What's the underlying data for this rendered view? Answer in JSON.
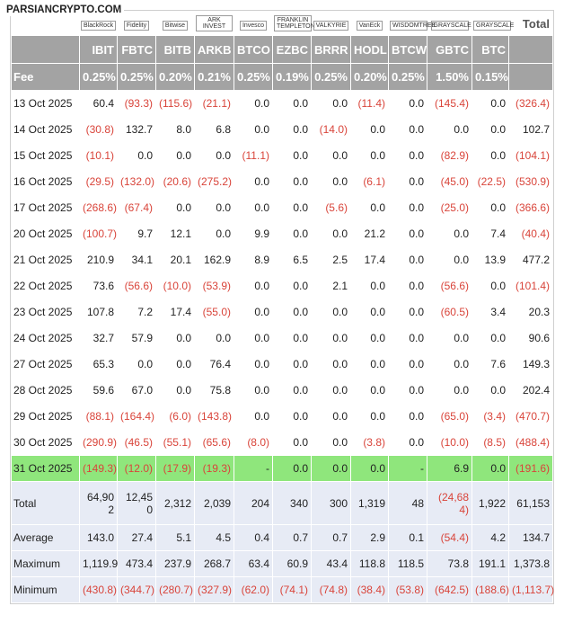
{
  "watermark": "PARSIANCRYPTO.COM",
  "table": {
    "logos": [
      "BlackRock",
      "Fidelity",
      "Bitwise",
      "ARK INVEST",
      "Invesco",
      "FRANKLIN TEMPLETON",
      "VALKYRIE",
      "VanEck",
      "WISDOMTREE",
      "GRAYSCALE",
      "GRAYSCALE",
      "Total"
    ],
    "tickers": [
      "IBIT",
      "FBTC",
      "BITB",
      "ARKB",
      "BTCO",
      "EZBC",
      "BRRR",
      "HODL",
      "BTCW",
      "GBTC",
      "BTC"
    ],
    "fee_label": "Fee",
    "fees": [
      "0.25%",
      "0.25%",
      "0.20%",
      "0.21%",
      "0.25%",
      "0.19%",
      "0.25%",
      "0.20%",
      "0.25%",
      "1.50%",
      "0.15%"
    ],
    "rows": [
      {
        "date": "13 Oct 2025",
        "values": [
          "60.4",
          "(93.3)",
          "(115.6)",
          "(21.1)",
          "0.0",
          "0.0",
          "0.0",
          "(11.4)",
          "0.0",
          "(145.4)",
          "0.0",
          "(326.4)"
        ]
      },
      {
        "date": "14 Oct 2025",
        "values": [
          "(30.8)",
          "132.7",
          "8.0",
          "6.8",
          "0.0",
          "0.0",
          "(14.0)",
          "0.0",
          "0.0",
          "0.0",
          "0.0",
          "102.7"
        ]
      },
      {
        "date": "15 Oct 2025",
        "values": [
          "(10.1)",
          "0.0",
          "0.0",
          "0.0",
          "(11.1)",
          "0.0",
          "0.0",
          "0.0",
          "0.0",
          "(82.9)",
          "0.0",
          "(104.1)"
        ]
      },
      {
        "date": "16 Oct 2025",
        "values": [
          "(29.5)",
          "(132.0)",
          "(20.6)",
          "(275.2)",
          "0.0",
          "0.0",
          "0.0",
          "(6.1)",
          "0.0",
          "(45.0)",
          "(22.5)",
          "(530.9)"
        ]
      },
      {
        "date": "17 Oct 2025",
        "values": [
          "(268.6)",
          "(67.4)",
          "0.0",
          "0.0",
          "0.0",
          "0.0",
          "(5.6)",
          "0.0",
          "0.0",
          "(25.0)",
          "0.0",
          "(366.6)"
        ]
      },
      {
        "date": "20 Oct 2025",
        "values": [
          "(100.7)",
          "9.7",
          "12.1",
          "0.0",
          "9.9",
          "0.0",
          "0.0",
          "21.2",
          "0.0",
          "0.0",
          "7.4",
          "(40.4)"
        ]
      },
      {
        "date": "21 Oct 2025",
        "values": [
          "210.9",
          "34.1",
          "20.1",
          "162.9",
          "8.9",
          "6.5",
          "2.5",
          "17.4",
          "0.0",
          "0.0",
          "13.9",
          "477.2"
        ]
      },
      {
        "date": "22 Oct 2025",
        "values": [
          "73.6",
          "(56.6)",
          "(10.0)",
          "(53.9)",
          "0.0",
          "0.0",
          "2.1",
          "0.0",
          "0.0",
          "(56.6)",
          "0.0",
          "(101.4)"
        ]
      },
      {
        "date": "23 Oct 2025",
        "values": [
          "107.8",
          "7.2",
          "17.4",
          "(55.0)",
          "0.0",
          "0.0",
          "0.0",
          "0.0",
          "0.0",
          "(60.5)",
          "3.4",
          "20.3"
        ]
      },
      {
        "date": "24 Oct 2025",
        "values": [
          "32.7",
          "57.9",
          "0.0",
          "0.0",
          "0.0",
          "0.0",
          "0.0",
          "0.0",
          "0.0",
          "0.0",
          "0.0",
          "90.6"
        ]
      },
      {
        "date": "27 Oct 2025",
        "values": [
          "65.3",
          "0.0",
          "0.0",
          "76.4",
          "0.0",
          "0.0",
          "0.0",
          "0.0",
          "0.0",
          "0.0",
          "7.6",
          "149.3"
        ]
      },
      {
        "date": "28 Oct 2025",
        "values": [
          "59.6",
          "67.0",
          "0.0",
          "75.8",
          "0.0",
          "0.0",
          "0.0",
          "0.0",
          "0.0",
          "0.0",
          "0.0",
          "202.4"
        ]
      },
      {
        "date": "29 Oct 2025",
        "values": [
          "(88.1)",
          "(164.4)",
          "(6.0)",
          "(143.8)",
          "0.0",
          "0.0",
          "0.0",
          "0.0",
          "0.0",
          "(65.0)",
          "(3.4)",
          "(470.7)"
        ]
      },
      {
        "date": "30 Oct 2025",
        "values": [
          "(290.9)",
          "(46.5)",
          "(55.1)",
          "(65.6)",
          "(8.0)",
          "0.0",
          "0.0",
          "(3.8)",
          "0.0",
          "(10.0)",
          "(8.5)",
          "(488.4)"
        ]
      },
      {
        "date": "31 Oct 2025",
        "highlight": true,
        "values": [
          "(149.3)",
          "(12.0)",
          "(17.9)",
          "(19.3)",
          "-",
          "0.0",
          "0.0",
          "0.0",
          "-",
          "6.9",
          "0.0",
          "(191.6)"
        ]
      }
    ],
    "summary": [
      {
        "label": "Total",
        "values": [
          "64,902",
          "12,450",
          "2,312",
          "2,039",
          "204",
          "340",
          "300",
          "1,319",
          "48",
          "(24,684)",
          "1,922",
          "61,153"
        ]
      },
      {
        "label": "Average",
        "values": [
          "143.0",
          "27.4",
          "5.1",
          "4.5",
          "0.4",
          "0.7",
          "0.7",
          "2.9",
          "0.1",
          "(54.4)",
          "4.2",
          "134.7"
        ]
      },
      {
        "label": "Maximum",
        "values": [
          "1,119.9",
          "473.4",
          "237.9",
          "268.7",
          "63.4",
          "60.9",
          "43.4",
          "118.8",
          "118.5",
          "73.8",
          "191.1",
          "1,373.8"
        ]
      },
      {
        "label": "Minimum",
        "values": [
          "(430.8)",
          "(344.7)",
          "(280.7)",
          "(327.9)",
          "(62.0)",
          "(74.1)",
          "(74.8)",
          "(38.4)",
          "(53.8)",
          "(642.5)",
          "(188.6)",
          "(1,113.7)"
        ]
      }
    ]
  }
}
